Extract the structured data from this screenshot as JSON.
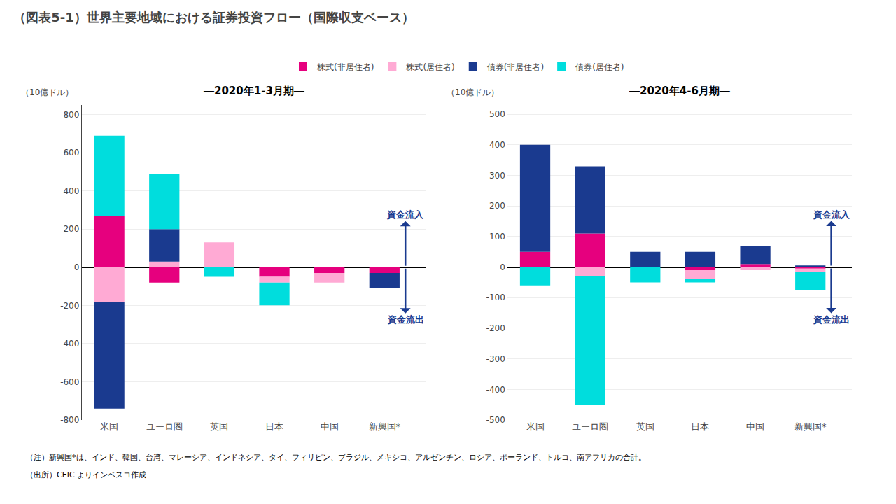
{
  "title": "（図表5-1）世界主要地域における証券投資フロー（国際収支ベース）",
  "annotations": [
    "（注）新興国*は、インド、韓国、台湾、マレーシア、インドネシア、タイ、フィリピン、ブラジル、メキシコ、アルゼンチン、ロシア、ポーランド、トルコ、南アフリカの合計。",
    "（出所）CEIC よりインベスコ作成"
  ],
  "chart_data": [
    {
      "type": "bar",
      "stacked": true,
      "legend": "top",
      "subtitle": "―2020年1-3月期―",
      "ylabel": "（10億ドル）",
      "categories": [
        "米国",
        "ユーロ圏",
        "英国",
        "日本",
        "中国",
        "新興国*"
      ],
      "series": [
        {
          "name": "株式(非居住者)",
          "color": "#E6007E",
          "values": [
            270,
            -80,
            0,
            -50,
            -30,
            -30
          ]
        },
        {
          "name": "株式(居住者)",
          "color": "#FFAAD4",
          "values": [
            -180,
            30,
            130,
            -30,
            -50,
            0
          ]
        },
        {
          "name": "債券(非居住者)",
          "color": "#1A3A8F",
          "values": [
            -560,
            170,
            0,
            0,
            0,
            -80
          ]
        },
        {
          "name": "債券(居住者)",
          "color": "#00DDDD",
          "values": [
            420,
            290,
            -50,
            -120,
            0,
            0
          ]
        }
      ],
      "ylim": [
        -800,
        850
      ],
      "yticks": [
        -800,
        -600,
        -400,
        -200,
        0,
        200,
        400,
        600,
        800
      ],
      "annotations": [
        {
          "text": "資金流入",
          "color": "#1A3A8F"
        },
        {
          "text": "資金流出",
          "color": "#1A3A8F"
        }
      ]
    },
    {
      "type": "bar",
      "stacked": true,
      "legend": "top",
      "subtitle": "―2020年4-6月期―",
      "ylabel": "（10億ドル）",
      "categories": [
        "米国",
        "ユーロ圏",
        "英国",
        "日本",
        "中国",
        "新興国*"
      ],
      "series": [
        {
          "name": "株式(非居住者)",
          "color": "#E6007E",
          "values": [
            50,
            110,
            0,
            -10,
            10,
            -5
          ]
        },
        {
          "name": "株式(居住者)",
          "color": "#FFAAD4",
          "values": [
            0,
            -30,
            0,
            -30,
            -10,
            -10
          ]
        },
        {
          "name": "債券(非居住者)",
          "color": "#1A3A8F",
          "values": [
            350,
            220,
            50,
            50,
            60,
            5
          ]
        },
        {
          "name": "債券(居住者)",
          "color": "#00DDDD",
          "values": [
            -60,
            -420,
            -50,
            -10,
            0,
            -60
          ]
        }
      ],
      "ylim": [
        -500,
        530
      ],
      "yticks": [
        -500,
        -400,
        -300,
        -200,
        -100,
        0,
        100,
        200,
        300,
        400,
        500
      ],
      "annotations": [
        {
          "text": "資金流入",
          "color": "#1A3A8F"
        },
        {
          "text": "資金流出",
          "color": "#1A3A8F"
        }
      ]
    }
  ]
}
